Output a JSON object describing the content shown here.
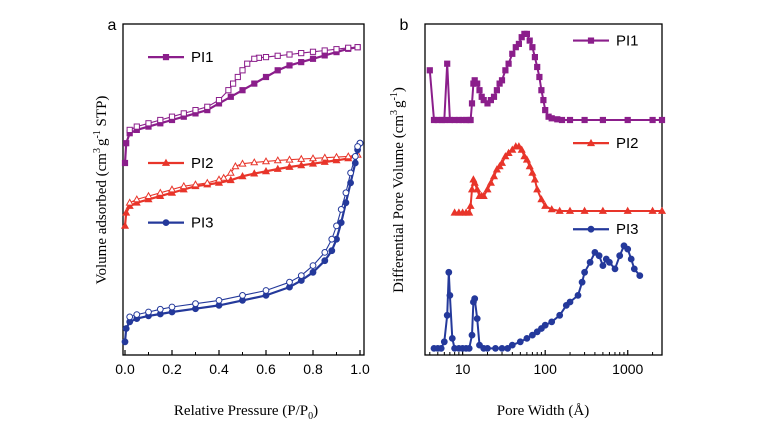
{
  "chart_data": [
    {
      "type": "line",
      "panel_label": "a",
      "xlabel_main": "Relative Pressure (P/P",
      "xlabel_sub": "0",
      "xlabel_end": ")",
      "ylabel_a": "Volume adsorbed (cm",
      "ylabel_sup1": "3",
      "ylabel_b": "g",
      "ylabel_sup2": "-1",
      "ylabel_c": " STP)",
      "xlim": [
        0.0,
        1.0
      ],
      "x_ticks": [
        "0.0",
        "0.2",
        "0.4",
        "0.6",
        "0.8",
        "1.0"
      ],
      "x_tick_values": [
        0.0,
        0.2,
        0.4,
        0.6,
        0.8,
        1.0
      ],
      "ylim": [
        0,
        100
      ],
      "y_ticks_labeled": false,
      "legend_placement": "inside, beside each curve",
      "series": [
        {
          "name": "PI1",
          "color": "#8B1E8B",
          "marker": "square",
          "legend_y": 90,
          "adsorption": {
            "x": [
              0.0,
              0.005,
              0.02,
              0.05,
              0.1,
              0.15,
              0.2,
              0.25,
              0.3,
              0.35,
              0.4,
              0.45,
              0.5,
              0.55,
              0.6,
              0.65,
              0.7,
              0.75,
              0.8,
              0.85,
              0.9,
              0.95,
              0.99
            ],
            "y": [
              58,
              64,
              67,
              68,
              69,
              70,
              71,
              72,
              73,
              74,
              76,
              78,
              80,
              82,
              84,
              86,
              87.5,
              88.5,
              89.5,
              90.5,
              91.5,
              92.5,
              93
            ]
          },
          "desorption": {
            "x": [
              0.99,
              0.95,
              0.9,
              0.85,
              0.8,
              0.75,
              0.7,
              0.65,
              0.6,
              0.57,
              0.55,
              0.52,
              0.5,
              0.48,
              0.46,
              0.44,
              0.4,
              0.35,
              0.3,
              0.25,
              0.2,
              0.15,
              0.1,
              0.05,
              0.02
            ],
            "y": [
              93,
              92.8,
              92.4,
              92,
              91.6,
              91.2,
              90.8,
              90.4,
              90,
              89.8,
              89.5,
              88,
              86,
              84,
              82,
              80,
              77,
              75,
              74,
              73,
              72,
              71,
              70,
              69,
              68
            ]
          }
        },
        {
          "name": "PI2",
          "color": "#E8352A",
          "marker": "triangle",
          "legend_y": 58,
          "adsorption": {
            "x": [
              0.0,
              0.005,
              0.02,
              0.05,
              0.1,
              0.15,
              0.2,
              0.25,
              0.3,
              0.35,
              0.4,
              0.45,
              0.5,
              0.55,
              0.6,
              0.65,
              0.7,
              0.75,
              0.8,
              0.85,
              0.9,
              0.95,
              0.99
            ],
            "y": [
              39,
              43,
              45,
              46,
              47,
              48,
              49,
              50,
              51,
              51.5,
              52,
              52.8,
              54,
              54.8,
              55.5,
              56.2,
              56.8,
              57.3,
              57.8,
              58.3,
              58.8,
              59.4,
              60.5
            ]
          },
          "desorption": {
            "x": [
              0.99,
              0.95,
              0.9,
              0.85,
              0.8,
              0.75,
              0.7,
              0.65,
              0.6,
              0.55,
              0.5,
              0.47,
              0.45,
              0.42,
              0.4,
              0.35,
              0.3,
              0.25,
              0.2,
              0.15,
              0.1,
              0.05,
              0.02
            ],
            "y": [
              60.5,
              60,
              59.8,
              59.6,
              59.4,
              59.2,
              59,
              58.8,
              58.5,
              58.2,
              57.8,
              57,
              55,
              53.5,
              53,
              52,
              51.5,
              51,
              50,
              49,
              48,
              47,
              46
            ]
          }
        },
        {
          "name": "PI3",
          "color": "#24399B",
          "marker": "circle",
          "legend_y": 40,
          "adsorption": {
            "x": [
              0.0,
              0.005,
              0.02,
              0.05,
              0.1,
              0.15,
              0.2,
              0.3,
              0.4,
              0.5,
              0.6,
              0.7,
              0.75,
              0.8,
              0.85,
              0.88,
              0.9,
              0.92,
              0.94,
              0.96,
              0.98,
              0.99,
              1.0
            ],
            "y": [
              4,
              8,
              10,
              11,
              11.8,
              12.4,
              13,
              14,
              15,
              16.5,
              18,
              20.5,
              22.5,
              25,
              28.5,
              31.5,
              35,
              40,
              46,
              52,
              58,
              62,
              64
            ]
          },
          "desorption": {
            "x": [
              1.0,
              0.99,
              0.98,
              0.96,
              0.94,
              0.92,
              0.9,
              0.88,
              0.85,
              0.8,
              0.75,
              0.7,
              0.6,
              0.5,
              0.4,
              0.3,
              0.2,
              0.15,
              0.1,
              0.05,
              0.02
            ],
            "y": [
              64,
              63,
              60,
              55,
              49,
              44,
              39,
              35,
              31,
              27,
              24,
              22,
              19.5,
              18,
              16.5,
              15.5,
              14.5,
              13.8,
              13,
              12.2,
              11.5
            ]
          }
        }
      ]
    },
    {
      "type": "line",
      "panel_label": "b",
      "xlabel": "Pore Width (Å)",
      "ylabel_a": "Differential Pore Volume (cm",
      "ylabel_sup1": "3",
      "ylabel_b": "g",
      "ylabel_sup2": "-1",
      "ylabel_c": ")",
      "xscale": "log",
      "xlim": [
        3.5,
        2600
      ],
      "x_ticks": [
        "10",
        "100",
        "1000"
      ],
      "x_tick_values": [
        10,
        100,
        1000
      ],
      "ylim": [
        0,
        100
      ],
      "y_ticks_labeled": false,
      "legend_placement": "top-right of each curve",
      "series": [
        {
          "name": "PI1",
          "color": "#8B1E8B",
          "marker": "square",
          "legend_y": 95,
          "x": [
            4,
            4.5,
            5,
            5.6,
            6,
            6.5,
            7,
            8,
            9,
            10,
            11,
            12,
            12.5,
            13,
            13.5,
            14,
            15,
            16,
            17,
            18,
            20,
            22,
            24,
            26,
            28,
            30,
            33,
            36,
            40,
            44,
            48,
            52,
            56,
            60,
            65,
            70,
            75,
            80,
            85,
            90,
            95,
            100,
            110,
            120,
            140,
            160,
            200,
            300,
            500,
            1000,
            2000,
            2600
          ],
          "y": [
            86,
            71,
            71,
            71,
            71,
            88,
            71,
            71,
            71,
            71,
            71,
            71,
            71,
            76,
            82,
            83,
            82,
            80,
            78,
            77,
            76,
            77,
            78,
            80,
            82,
            83,
            86,
            88,
            91,
            93,
            94,
            96,
            97,
            97,
            95,
            93,
            90,
            87,
            84,
            80,
            77,
            74,
            72,
            71.5,
            71.2,
            71,
            71,
            71,
            71,
            71,
            71,
            71
          ]
        },
        {
          "name": "PI2",
          "color": "#E8352A",
          "marker": "triangle",
          "legend_y": 64,
          "x": [
            8,
            9,
            10,
            11,
            12,
            12.5,
            13,
            13.5,
            14,
            15,
            16,
            17,
            18,
            20,
            22,
            24,
            26,
            28,
            30,
            33,
            36,
            40,
            44,
            48,
            52,
            56,
            60,
            65,
            70,
            75,
            80,
            90,
            100,
            120,
            150,
            200,
            300,
            500,
            1000,
            2000,
            2600
          ],
          "y": [
            43,
            43,
            43,
            43,
            43,
            45,
            50,
            53,
            52,
            50,
            48,
            48,
            48,
            50,
            52,
            54,
            56,
            57,
            58,
            60,
            61,
            62,
            63,
            63,
            62,
            60,
            59,
            57,
            55,
            53,
            50,
            47,
            45,
            44,
            43.5,
            43.5,
            43.5,
            43.5,
            43.5,
            43.5,
            43.5
          ]
        },
        {
          "name": "PI3",
          "color": "#24399B",
          "marker": "circle",
          "legend_y": 38,
          "x": [
            4.5,
            5,
            5.5,
            6,
            6.5,
            6.8,
            7,
            7.5,
            8,
            9,
            10,
            11,
            12,
            13,
            13.5,
            14,
            15,
            16,
            18,
            20,
            25,
            30,
            35,
            40,
            50,
            60,
            70,
            80,
            90,
            100,
            120,
            150,
            180,
            200,
            250,
            280,
            300,
            350,
            400,
            450,
            500,
            550,
            600,
            700,
            800,
            900,
            1000,
            1100,
            1200,
            1400
          ],
          "y": [
            2,
            2,
            2,
            4,
            12,
            25,
            18,
            5,
            2,
            2,
            2,
            2,
            2,
            6,
            16,
            17,
            11,
            3,
            2,
            2,
            2,
            2,
            2,
            3,
            4,
            5,
            6,
            7,
            8,
            9,
            10,
            12,
            15,
            16,
            18,
            22,
            25,
            28,
            31,
            30,
            27,
            29,
            28,
            26,
            30,
            33,
            32,
            29,
            26,
            24
          ]
        }
      ]
    }
  ]
}
